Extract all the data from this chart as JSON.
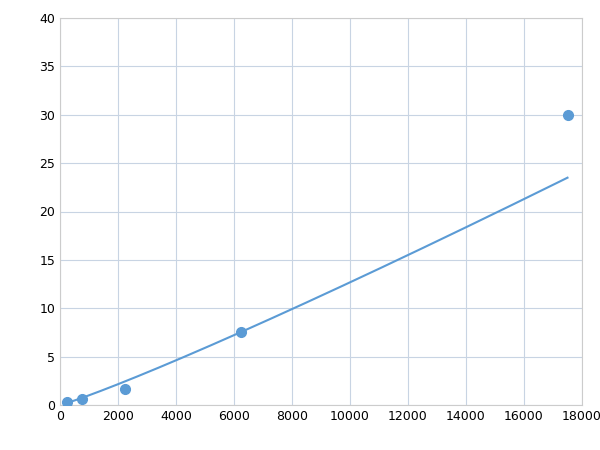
{
  "x_data": [
    250,
    750,
    2250,
    6250,
    17500
  ],
  "y_data": [
    0.3,
    0.6,
    1.7,
    7.5,
    30.0
  ],
  "line_color": "#5b9bd5",
  "marker_color": "#5b9bd5",
  "marker_size": 7,
  "line_width": 1.5,
  "xlim": [
    0,
    18000
  ],
  "ylim": [
    0,
    40
  ],
  "xticks": [
    0,
    2000,
    4000,
    6000,
    8000,
    10000,
    12000,
    14000,
    16000,
    18000
  ],
  "yticks": [
    0,
    5,
    10,
    15,
    20,
    25,
    30,
    35,
    40
  ],
  "grid_color": "#c8d4e3",
  "background_color": "#ffffff",
  "tick_fontsize": 9,
  "figsize": [
    6.0,
    4.5
  ],
  "dpi": 100
}
